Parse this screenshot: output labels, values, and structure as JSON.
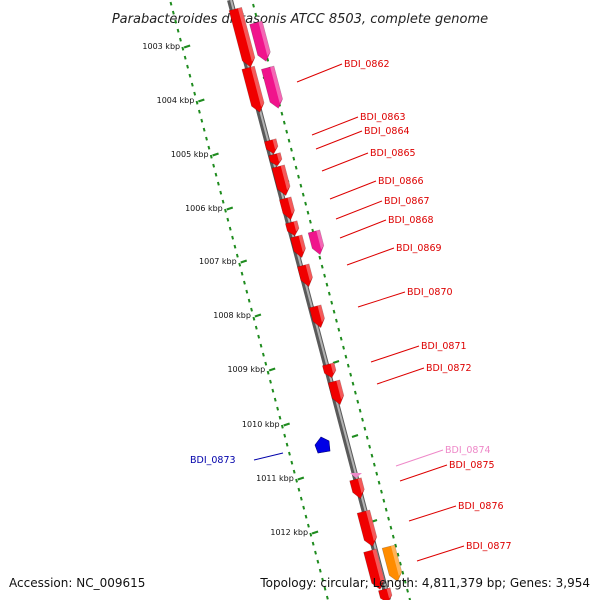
{
  "title": "Parabacteroides distasonis ATCC 8503, complete genome",
  "footer": {
    "accession": "Accession: NC_009615",
    "summary": "Topology: circular; Length: 4,811,379 bp; Genes: 3,954"
  },
  "colors": {
    "backbone": "#8a8a8a",
    "tick_track": "#1f8c1f",
    "gene_red": "#f00000",
    "gene_magenta": "#f0148c",
    "gene_pink": "#ee88c8",
    "gene_orange": "#ff8c00",
    "gene_blue": "#0000e6"
  },
  "ticks": [
    {
      "label": "1003 kbp"
    },
    {
      "label": "1004 kbp"
    },
    {
      "label": "1005 kbp"
    },
    {
      "label": "1006 kbp"
    },
    {
      "label": "1007 kbp"
    },
    {
      "label": "1008 kbp"
    },
    {
      "label": "1009 kbp"
    },
    {
      "label": "1010 kbp"
    },
    {
      "label": "1011 kbp"
    },
    {
      "label": "1012 kbp"
    }
  ],
  "gene_labels": [
    {
      "name": "BDI_0862",
      "color": "#dd0000",
      "side": "forward"
    },
    {
      "name": "BDI_0863",
      "color": "#dd0000",
      "side": "forward"
    },
    {
      "name": "BDI_0864",
      "color": "#dd0000",
      "side": "forward"
    },
    {
      "name": "BDI_0865",
      "color": "#dd0000",
      "side": "forward"
    },
    {
      "name": "BDI_0866",
      "color": "#dd0000",
      "side": "forward"
    },
    {
      "name": "BDI_0867",
      "color": "#dd0000",
      "side": "forward"
    },
    {
      "name": "BDI_0868",
      "color": "#dd0000",
      "side": "forward"
    },
    {
      "name": "BDI_0869",
      "color": "#dd0000",
      "side": "forward"
    },
    {
      "name": "BDI_0870",
      "color": "#dd0000",
      "side": "forward"
    },
    {
      "name": "BDI_0871",
      "color": "#dd0000",
      "side": "forward"
    },
    {
      "name": "BDI_0872",
      "color": "#dd0000",
      "side": "forward"
    },
    {
      "name": "BDI_0873",
      "color": "#0000aa",
      "side": "reverse"
    },
    {
      "name": "BDI_0874",
      "color": "#ee88c8",
      "side": "forward"
    },
    {
      "name": "BDI_0875",
      "color": "#dd0000",
      "side": "forward"
    },
    {
      "name": "BDI_0876",
      "color": "#dd0000",
      "side": "forward"
    },
    {
      "name": "BDI_0877",
      "color": "#dd0000",
      "side": "forward"
    }
  ]
}
